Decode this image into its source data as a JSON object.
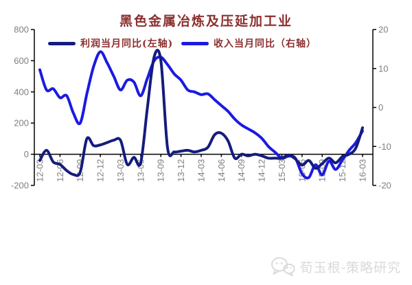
{
  "title": "黑色金属冶炼及压延加工业",
  "colors": {
    "title_text": "#8b2f2f",
    "axis_line": "#000000",
    "tick_label": "#7f7f7f",
    "profit_line": "#141c7d",
    "revenue_line": "#1b1be0",
    "watermark": "#dadada"
  },
  "legend": [
    {
      "label": "利润当月同比(左轴)",
      "color": "#141c7d"
    },
    {
      "label": "收入当月同比（右轴）",
      "color": "#1b1be0"
    }
  ],
  "watermark": {
    "icon": "wechat-icon",
    "text": "荀玉根-策略研究"
  },
  "chart_data": {
    "type": "line",
    "title": "黑色金属冶炼及压延加工业",
    "x": [
      "12-03",
      "12-04",
      "12-05",
      "12-06",
      "12-07",
      "12-08",
      "12-09",
      "12-10",
      "12-11",
      "12-12",
      "13-01",
      "13-02",
      "13-03",
      "13-04",
      "13-05",
      "13-06",
      "13-07",
      "13-08",
      "13-09",
      "13-10",
      "13-11",
      "13-12",
      "14-01",
      "14-02",
      "14-03",
      "14-04",
      "14-05",
      "14-06",
      "14-07",
      "14-08",
      "14-09",
      "14-10",
      "14-11",
      "14-12",
      "15-01",
      "15-02",
      "15-03",
      "15-04",
      "15-05",
      "15-06",
      "15-07",
      "15-08",
      "15-09",
      "15-10",
      "15-11",
      "15-12",
      "16-01",
      "16-02",
      "16-03"
    ],
    "x_tick_labels": [
      "12-03",
      "12-06",
      "12-09",
      "12-12",
      "13-03",
      "13-06",
      "13-09",
      "13-12",
      "14-03",
      "14-06",
      "14-09",
      "14-12",
      "15-03",
      "15-06",
      "15-09",
      "15-12",
      "16-03"
    ],
    "label_every": 3,
    "series": [
      {
        "id": "profit",
        "name": "利润当月同比(左轴)",
        "axis": "left",
        "color": "#141c7d",
        "values": [
          -40,
          25,
          -50,
          -65,
          -105,
          -130,
          -115,
          100,
          55,
          60,
          75,
          90,
          90,
          -65,
          -20,
          -55,
          300,
          625,
          600,
          40,
          15,
          20,
          25,
          15,
          25,
          45,
          125,
          135,
          85,
          -25,
          0,
          -10,
          0,
          -10,
          -25,
          -25,
          -25,
          -5,
          -30,
          -70,
          -40,
          -90,
          -60,
          -25,
          -55,
          -15,
          0,
          40,
          170
        ]
      },
      {
        "id": "revenue",
        "name": "收入当月同比（右轴）",
        "axis": "right",
        "color": "#1b1be0",
        "values": [
          9.7,
          4.5,
          4.8,
          2.5,
          3.0,
          -1.5,
          -4.0,
          3.5,
          10.5,
          14.3,
          11.5,
          8.0,
          4.5,
          7.0,
          6.5,
          3.0,
          7.5,
          12.0,
          12.9,
          11.0,
          8.6,
          7.0,
          4.5,
          4.0,
          3.3,
          3.5,
          2.0,
          0.5,
          -1.0,
          -3.0,
          -4.5,
          -5.5,
          -6.5,
          -7.9,
          -10.0,
          -11.5,
          -13.0,
          -12.5,
          -13.0,
          -17.0,
          -18.0,
          -14.7,
          -17.3,
          -13.8,
          -15.9,
          -13.5,
          -11.0,
          -9.0,
          -6.0
        ]
      }
    ],
    "left_axis": {
      "min": -200,
      "max": 800,
      "ticks": [
        800,
        600,
        400,
        200,
        0,
        -200
      ]
    },
    "right_axis": {
      "min": -20,
      "max": 20,
      "ticks": [
        20,
        10,
        0,
        -10,
        -20
      ]
    },
    "grid": false,
    "legend_position": "top"
  }
}
